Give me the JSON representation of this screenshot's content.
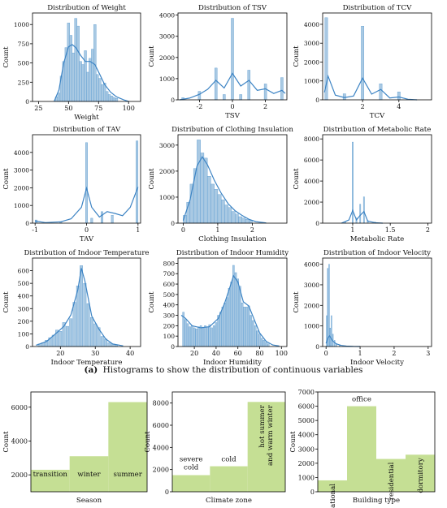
{
  "caption": {
    "label": "(a)",
    "text": "Histograms to show the distribution of continuous variables"
  },
  "colors": {
    "hist_fill": "#a9c9e3",
    "hist_stroke": "#5b9bd0",
    "kde": "#3d84c4",
    "bar_fill": "#c5df94",
    "axis": "#000000"
  },
  "chart_data": [
    {
      "type": "bar",
      "title": "Distribution of Weight",
      "xlabel": "Weight",
      "ylabel": "Count",
      "xlim": [
        20,
        110
      ],
      "ylim": [
        0,
        1150
      ],
      "xticks": [
        25,
        50,
        75,
        100
      ],
      "yticks": [
        0,
        250,
        500,
        750,
        1000
      ],
      "bins": [
        [
          40,
          60
        ],
        [
          42,
          110
        ],
        [
          44,
          330
        ],
        [
          46,
          520
        ],
        [
          48,
          700
        ],
        [
          50,
          1020
        ],
        [
          52,
          860
        ],
        [
          54,
          630
        ],
        [
          56,
          1080
        ],
        [
          58,
          980
        ],
        [
          60,
          520
        ],
        [
          62,
          480
        ],
        [
          64,
          660
        ],
        [
          66,
          380
        ],
        [
          68,
          560
        ],
        [
          70,
          680
        ],
        [
          72,
          1000
        ],
        [
          74,
          350
        ],
        [
          76,
          300
        ],
        [
          78,
          220
        ],
        [
          80,
          240
        ],
        [
          82,
          130
        ],
        [
          84,
          90
        ],
        [
          86,
          70
        ],
        [
          88,
          50
        ],
        [
          90,
          40
        ]
      ],
      "bin_width": 2,
      "kde": [
        [
          38,
          0
        ],
        [
          42,
          150
        ],
        [
          46,
          500
        ],
        [
          50,
          710
        ],
        [
          53,
          740
        ],
        [
          56,
          700
        ],
        [
          60,
          600
        ],
        [
          64,
          520
        ],
        [
          68,
          520
        ],
        [
          72,
          480
        ],
        [
          76,
          350
        ],
        [
          80,
          220
        ],
        [
          85,
          120
        ],
        [
          90,
          60
        ],
        [
          96,
          20
        ],
        [
          100,
          0
        ]
      ]
    },
    {
      "type": "bar",
      "title": "Distribution of TSV",
      "xlabel": "TSV",
      "ylabel": "Count",
      "xlim": [
        -3.3,
        3.3
      ],
      "ylim": [
        0,
        4100
      ],
      "xticks": [
        -2,
        0,
        2
      ],
      "yticks": [
        0,
        1000,
        2000,
        3000,
        4000
      ],
      "bins": [
        [
          -3,
          100
        ],
        [
          -2,
          400
        ],
        [
          -1,
          1500
        ],
        [
          -0.5,
          250
        ],
        [
          0,
          3850
        ],
        [
          0.5,
          250
        ],
        [
          1,
          1400
        ],
        [
          2,
          750
        ],
        [
          3,
          1050
        ]
      ],
      "bin_width": 0.15,
      "kde": [
        [
          -3.2,
          0
        ],
        [
          -2.6,
          80
        ],
        [
          -2,
          260
        ],
        [
          -1.5,
          500
        ],
        [
          -1,
          920
        ],
        [
          -0.5,
          560
        ],
        [
          0,
          1250
        ],
        [
          0.5,
          650
        ],
        [
          1,
          920
        ],
        [
          1.5,
          450
        ],
        [
          2,
          520
        ],
        [
          2.5,
          300
        ],
        [
          3,
          450
        ],
        [
          3.2,
          300
        ]
      ]
    },
    {
      "type": "bar",
      "title": "Distribution of TCV",
      "xlabel": "TCV",
      "ylabel": "Count",
      "xlim": [
        -0.2,
        5.8
      ],
      "ylim": [
        0,
        4600
      ],
      "xticks": [
        2,
        4
      ],
      "yticks": [
        0,
        1000,
        2000,
        3000,
        4000
      ],
      "bins": [
        [
          0,
          4350
        ],
        [
          1,
          320
        ],
        [
          2,
          3900
        ],
        [
          3,
          850
        ],
        [
          4,
          420
        ]
      ],
      "bin_width": 0.15,
      "kde": [
        [
          -0.1,
          400
        ],
        [
          0.1,
          1250
        ],
        [
          0.5,
          250
        ],
        [
          1,
          120
        ],
        [
          1.5,
          200
        ],
        [
          2,
          1150
        ],
        [
          2.5,
          300
        ],
        [
          3,
          550
        ],
        [
          3.5,
          100
        ],
        [
          4,
          150
        ],
        [
          4.5,
          30
        ],
        [
          5,
          0
        ]
      ]
    },
    {
      "type": "bar",
      "title": "Distribution of TAV",
      "xlabel": "TAV",
      "ylabel": "Count",
      "xlim": [
        -1.05,
        1.05
      ],
      "ylim": [
        0,
        5000
      ],
      "xticks": [
        -1,
        0,
        1
      ],
      "yticks": [
        0,
        1000,
        2000,
        3000,
        4000
      ],
      "bins": [
        [
          -0.98,
          180
        ],
        [
          -0.5,
          90
        ],
        [
          0,
          4550
        ],
        [
          0.1,
          280
        ],
        [
          0.3,
          650
        ],
        [
          0.5,
          450
        ],
        [
          0.98,
          4650
        ]
      ],
      "bin_width": 0.04,
      "kde": [
        [
          -1,
          120
        ],
        [
          -0.8,
          30
        ],
        [
          -0.5,
          80
        ],
        [
          -0.3,
          250
        ],
        [
          -0.1,
          900
        ],
        [
          0,
          1980
        ],
        [
          0.1,
          900
        ],
        [
          0.25,
          350
        ],
        [
          0.4,
          650
        ],
        [
          0.55,
          550
        ],
        [
          0.7,
          420
        ],
        [
          0.85,
          900
        ],
        [
          1,
          2050
        ]
      ]
    },
    {
      "type": "bar",
      "title": "Distribution of Clothing Insulation",
      "xlabel": "Clothing Insulation",
      "ylabel": "Count",
      "xlim": [
        -0.15,
        3.0
      ],
      "ylim": [
        0,
        3400
      ],
      "xticks": [
        0,
        1,
        2
      ],
      "yticks": [
        0,
        1000,
        2000,
        3000
      ],
      "bins": [
        [
          0.05,
          300
        ],
        [
          0.15,
          800
        ],
        [
          0.25,
          1500
        ],
        [
          0.35,
          2100
        ],
        [
          0.45,
          3200
        ],
        [
          0.55,
          2700
        ],
        [
          0.65,
          2500
        ],
        [
          0.75,
          1800
        ],
        [
          0.85,
          1500
        ],
        [
          0.95,
          1300
        ],
        [
          1.05,
          1100
        ],
        [
          1.15,
          900
        ],
        [
          1.25,
          700
        ],
        [
          1.35,
          600
        ],
        [
          1.45,
          450
        ],
        [
          1.55,
          350
        ],
        [
          1.65,
          250
        ],
        [
          1.75,
          200
        ],
        [
          1.85,
          150
        ],
        [
          1.95,
          100
        ]
      ],
      "bin_width": 0.1,
      "kde": [
        [
          0,
          100
        ],
        [
          0.2,
          900
        ],
        [
          0.4,
          2200
        ],
        [
          0.55,
          2550
        ],
        [
          0.7,
          2250
        ],
        [
          0.9,
          1650
        ],
        [
          1.1,
          1150
        ],
        [
          1.3,
          750
        ],
        [
          1.5,
          480
        ],
        [
          1.7,
          300
        ],
        [
          1.9,
          150
        ],
        [
          2.1,
          60
        ],
        [
          2.4,
          10
        ]
      ]
    },
    {
      "type": "bar",
      "title": "Distribution of Metabolic Rate",
      "xlabel": "Metabolic Rate",
      "ylabel": "Count",
      "xlim": [
        0.6,
        2.05
      ],
      "ylim": [
        0,
        8400
      ],
      "xticks": [
        1.0,
        1.5,
        2.0
      ],
      "yticks": [
        0,
        2000,
        4000,
        6000,
        8000
      ],
      "bins": [
        [
          0.9,
          150
        ],
        [
          1.0,
          7700
        ],
        [
          1.05,
          500
        ],
        [
          1.1,
          1800
        ],
        [
          1.15,
          2500
        ],
        [
          1.2,
          250
        ],
        [
          1.3,
          100
        ]
      ],
      "bin_width": 0.015,
      "kde": [
        [
          0.85,
          0
        ],
        [
          0.95,
          300
        ],
        [
          1.0,
          1200
        ],
        [
          1.05,
          300
        ],
        [
          1.1,
          750
        ],
        [
          1.15,
          1100
        ],
        [
          1.2,
          200
        ],
        [
          1.3,
          40
        ],
        [
          1.4,
          0
        ]
      ]
    },
    {
      "type": "bar",
      "title": "Distribution of Indoor Temperature",
      "xlabel": "Indoor Temperature",
      "ylabel": "Count",
      "xlim": [
        12,
        43
      ],
      "ylim": [
        0,
        700
      ],
      "xticks": [
        20,
        30,
        40
      ],
      "yticks": [
        0,
        100,
        200,
        300,
        400,
        500,
        600
      ],
      "bins": [
        [
          14,
          20
        ],
        [
          15,
          30
        ],
        [
          16,
          50
        ],
        [
          17,
          70
        ],
        [
          18,
          90
        ],
        [
          19,
          130
        ],
        [
          20,
          120
        ],
        [
          21,
          190
        ],
        [
          22,
          160
        ],
        [
          23,
          220
        ],
        [
          24,
          350
        ],
        [
          25,
          480
        ],
        [
          26,
          640
        ],
        [
          27,
          500
        ],
        [
          28,
          340
        ],
        [
          29,
          230
        ],
        [
          30,
          180
        ],
        [
          31,
          150
        ],
        [
          32,
          80
        ],
        [
          33,
          60
        ],
        [
          34,
          30
        ],
        [
          35,
          20
        ],
        [
          36,
          15
        ]
      ],
      "bin_width": 0.8,
      "kde": [
        [
          13,
          10
        ],
        [
          16,
          40
        ],
        [
          19,
          110
        ],
        [
          21,
          160
        ],
        [
          23,
          250
        ],
        [
          25,
          450
        ],
        [
          26,
          620
        ],
        [
          27,
          520
        ],
        [
          29,
          240
        ],
        [
          31,
          140
        ],
        [
          33,
          60
        ],
        [
          35,
          20
        ],
        [
          38,
          5
        ]
      ]
    },
    {
      "type": "bar",
      "title": "Distribution of Indoor Humidity",
      "xlabel": "Indoor Humidity",
      "ylabel": "Count",
      "xlim": [
        5,
        105
      ],
      "ylim": [
        0,
        850
      ],
      "xticks": [
        20,
        40,
        60,
        80,
        100
      ],
      "yticks": [
        0,
        100,
        200,
        300,
        400,
        500,
        600,
        700,
        800
      ],
      "bins": [
        [
          10,
          330
        ],
        [
          12,
          260
        ],
        [
          14,
          220
        ],
        [
          16,
          190
        ],
        [
          18,
          200
        ],
        [
          20,
          180
        ],
        [
          22,
          170
        ],
        [
          24,
          190
        ],
        [
          26,
          200
        ],
        [
          28,
          180
        ],
        [
          30,
          200
        ],
        [
          32,
          190
        ],
        [
          34,
          210
        ],
        [
          36,
          180
        ],
        [
          38,
          200
        ],
        [
          40,
          230
        ],
        [
          42,
          300
        ],
        [
          44,
          330
        ],
        [
          46,
          380
        ],
        [
          48,
          420
        ],
        [
          50,
          470
        ],
        [
          52,
          560
        ],
        [
          54,
          620
        ],
        [
          56,
          780
        ],
        [
          58,
          710
        ],
        [
          60,
          650
        ],
        [
          62,
          580
        ],
        [
          64,
          420
        ],
        [
          66,
          380
        ],
        [
          68,
          380
        ],
        [
          70,
          390
        ],
        [
          72,
          300
        ],
        [
          74,
          250
        ],
        [
          76,
          200
        ],
        [
          78,
          150
        ],
        [
          80,
          120
        ],
        [
          82,
          80
        ],
        [
          84,
          60
        ],
        [
          86,
          40
        ],
        [
          88,
          25
        ]
      ],
      "bin_width": 1.6,
      "kde": [
        [
          8,
          300
        ],
        [
          12,
          270
        ],
        [
          18,
          200
        ],
        [
          26,
          180
        ],
        [
          34,
          190
        ],
        [
          42,
          270
        ],
        [
          48,
          420
        ],
        [
          53,
          580
        ],
        [
          56,
          680
        ],
        [
          60,
          620
        ],
        [
          65,
          430
        ],
        [
          70,
          390
        ],
        [
          75,
          260
        ],
        [
          80,
          130
        ],
        [
          86,
          50
        ],
        [
          92,
          15
        ],
        [
          98,
          5
        ]
      ]
    },
    {
      "type": "bar",
      "title": "Distribution of Indoor Velocity",
      "xlabel": "Indoor Velocity",
      "ylabel": "Count",
      "xlim": [
        -0.1,
        3.1
      ],
      "ylim": [
        0,
        4300
      ],
      "xticks": [
        0,
        1,
        2,
        3
      ],
      "yticks": [
        0,
        1000,
        2000,
        3000,
        4000
      ],
      "bins": [
        [
          0.02,
          1500
        ],
        [
          0.05,
          3800
        ],
        [
          0.09,
          4000
        ],
        [
          0.12,
          900
        ],
        [
          0.16,
          1500
        ],
        [
          0.2,
          600
        ],
        [
          0.25,
          300
        ],
        [
          0.3,
          150
        ],
        [
          0.4,
          80
        ]
      ],
      "bin_width": 0.025,
      "kde": [
        [
          0,
          150
        ],
        [
          0.05,
          400
        ],
        [
          0.1,
          520
        ],
        [
          0.2,
          260
        ],
        [
          0.3,
          130
        ],
        [
          0.45,
          50
        ],
        [
          0.6,
          20
        ],
        [
          0.8,
          5
        ],
        [
          1,
          0
        ]
      ]
    },
    {
      "type": "bar",
      "title": "",
      "xlabel": "Season",
      "ylabel": "Count",
      "ylim": [
        1000,
        6900
      ],
      "yticks": [
        2000,
        4000,
        6000
      ],
      "categories": [
        "transition",
        "winter",
        "summer"
      ],
      "values": [
        2300,
        3100,
        6300
      ],
      "label_rotated": [
        false,
        false,
        false
      ]
    },
    {
      "type": "bar",
      "title": "",
      "xlabel": "Climate zone",
      "ylabel": "Count",
      "ylim": [
        0,
        9000
      ],
      "yticks": [
        0,
        2000,
        4000,
        6000,
        8000
      ],
      "categories": [
        "severe cold",
        "cold",
        "hot summer and warm winter"
      ],
      "values": [
        1500,
        2300,
        8100
      ],
      "label_rotated": [
        false,
        false,
        true
      ]
    },
    {
      "type": "bar",
      "title": "",
      "xlabel": "Building type",
      "ylabel": "Count",
      "ylim": [
        0,
        7000
      ],
      "yticks": [
        0,
        1000,
        2000,
        3000,
        4000,
        5000,
        6000,
        7000
      ],
      "categories": [
        "educational",
        "office",
        "residential",
        "dormitory"
      ],
      "values": [
        800,
        6000,
        2300,
        2600
      ],
      "label_rotated": [
        true,
        false,
        true,
        true
      ]
    }
  ]
}
